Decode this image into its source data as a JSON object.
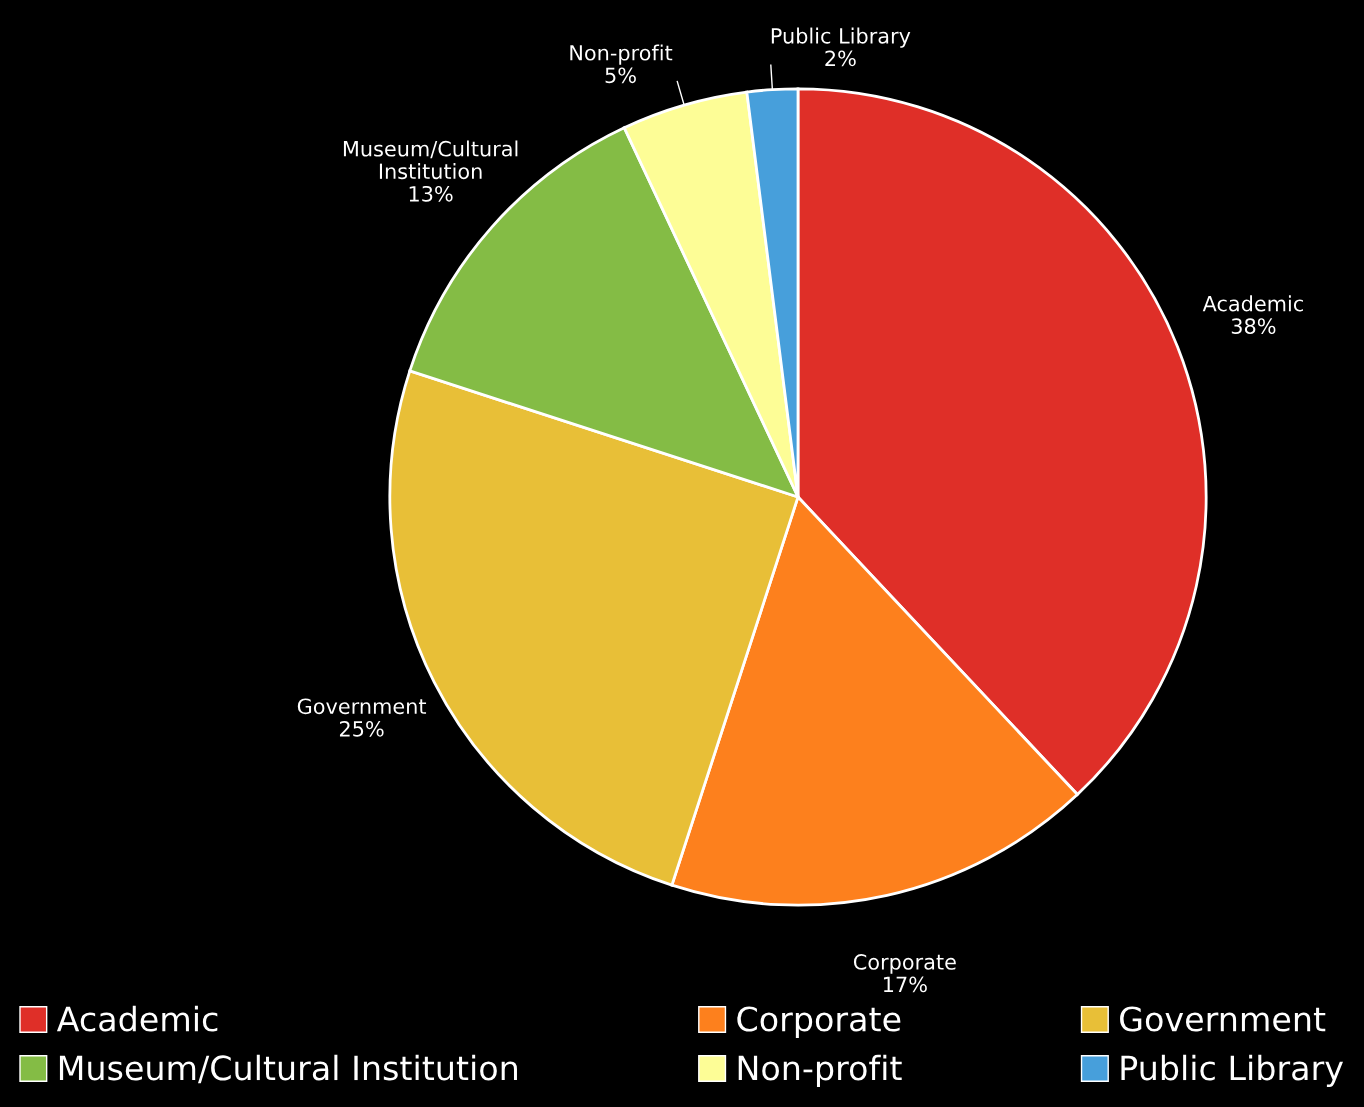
{
  "chart_data": {
    "type": "pie",
    "categories": [
      "Academic",
      "Corporate",
      "Government",
      "Museum/Cultural Institution",
      "Non-profit",
      "Public Library"
    ],
    "values": [
      38,
      17,
      25,
      13,
      5,
      2
    ],
    "value_labels": [
      "38%",
      "17%",
      "25%",
      "13%",
      "5%",
      "2%"
    ],
    "colors": [
      "#df2f28",
      "#fd801d",
      "#e8bf37",
      "#84bc45",
      "#fdfd96",
      "#479fdb"
    ],
    "legend": "bottom"
  }
}
